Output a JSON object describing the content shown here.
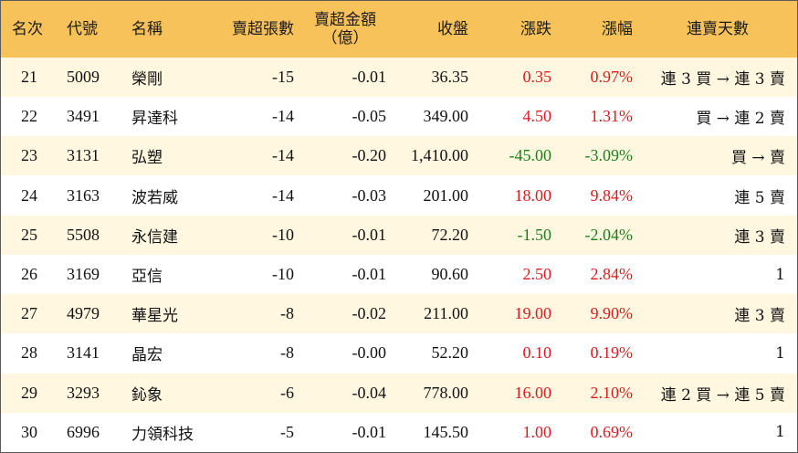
{
  "header": {
    "rank": "名次",
    "code": "代號",
    "name": "名稱",
    "net_sell_lots": "賣超張數",
    "net_sell_amount_line1": "賣超金額",
    "net_sell_amount_line2": "（億）",
    "close": "收盤",
    "change": "漲跌",
    "change_pct": "漲幅",
    "streak": "連賣天數"
  },
  "colors": {
    "header_bg": "#f7c25a",
    "row_alt_bg": "#fff7e0",
    "up": "#e0191e",
    "down": "#1a7f1a"
  },
  "rows": [
    {
      "rank": "21",
      "code": "5009",
      "name": "榮剛",
      "lots": "-15",
      "amount": "-0.01",
      "close": "36.35",
      "change": "0.35",
      "pct": "0.97%",
      "dir": "up",
      "streak": "連 3 買 → 連 3 賣"
    },
    {
      "rank": "22",
      "code": "3491",
      "name": "昇達科",
      "lots": "-14",
      "amount": "-0.05",
      "close": "349.00",
      "change": "4.50",
      "pct": "1.31%",
      "dir": "up",
      "streak": "買 → 連 2 賣"
    },
    {
      "rank": "23",
      "code": "3131",
      "name": "弘塑",
      "lots": "-14",
      "amount": "-0.20",
      "close": "1,410.00",
      "change": "-45.00",
      "pct": "-3.09%",
      "dir": "down",
      "streak": "買 → 賣"
    },
    {
      "rank": "24",
      "code": "3163",
      "name": "波若威",
      "lots": "-14",
      "amount": "-0.03",
      "close": "201.00",
      "change": "18.00",
      "pct": "9.84%",
      "dir": "up",
      "streak": "連 5 賣"
    },
    {
      "rank": "25",
      "code": "5508",
      "name": "永信建",
      "lots": "-10",
      "amount": "-0.01",
      "close": "72.20",
      "change": "-1.50",
      "pct": "-2.04%",
      "dir": "down",
      "streak": "連 3 賣"
    },
    {
      "rank": "26",
      "code": "3169",
      "name": "亞信",
      "lots": "-10",
      "amount": "-0.01",
      "close": "90.60",
      "change": "2.50",
      "pct": "2.84%",
      "dir": "up",
      "streak": "1"
    },
    {
      "rank": "27",
      "code": "4979",
      "name": "華星光",
      "lots": "-8",
      "amount": "-0.02",
      "close": "211.00",
      "change": "19.00",
      "pct": "9.90%",
      "dir": "up",
      "streak": "連 3 賣"
    },
    {
      "rank": "28",
      "code": "3141",
      "name": "晶宏",
      "lots": "-8",
      "amount": "-0.00",
      "close": "52.20",
      "change": "0.10",
      "pct": "0.19%",
      "dir": "up",
      "streak": "1"
    },
    {
      "rank": "29",
      "code": "3293",
      "name": "鈊象",
      "lots": "-6",
      "amount": "-0.04",
      "close": "778.00",
      "change": "16.00",
      "pct": "2.10%",
      "dir": "up",
      "streak": "連 2 買 → 連 5 賣"
    },
    {
      "rank": "30",
      "code": "6996",
      "name": "力領科技",
      "lots": "-5",
      "amount": "-0.01",
      "close": "145.50",
      "change": "1.00",
      "pct": "0.69%",
      "dir": "up",
      "streak": "1"
    }
  ]
}
